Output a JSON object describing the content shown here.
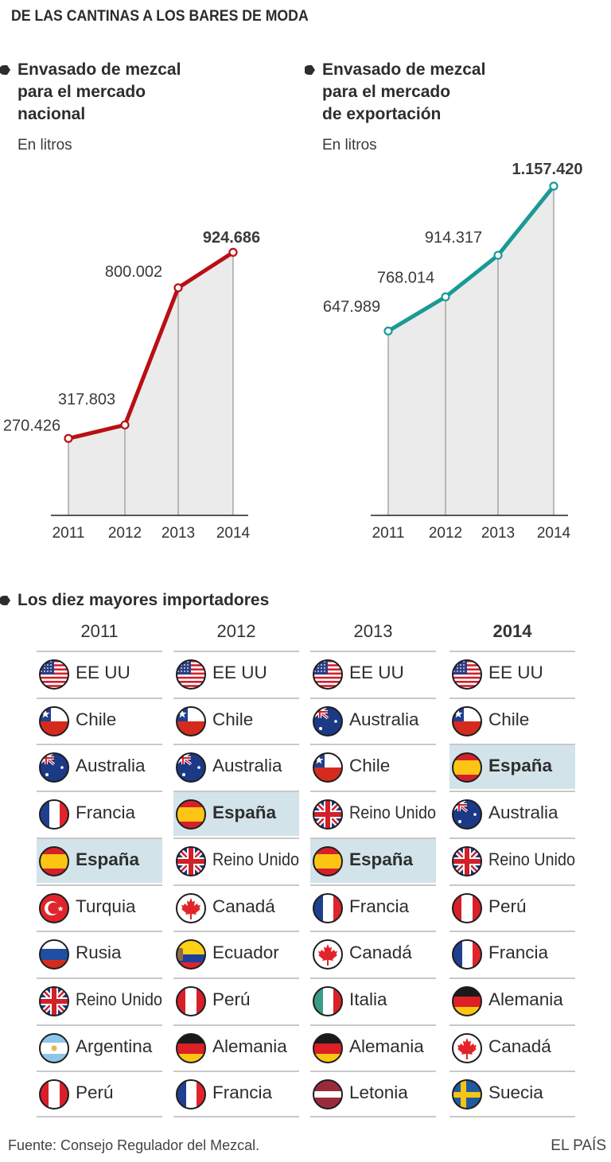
{
  "title": "DE LAS CANTINAS A LOS BARES DE MODA",
  "colors": {
    "national": "#b90f14",
    "export": "#1a9a94",
    "area_fill": "#ebebeb",
    "highlight": "#d3e3ea"
  },
  "chart_data": [
    {
      "type": "area",
      "title": "Envasado de mezcal para el mercado nacional",
      "title_lines": [
        "Envasado de mezcal",
        "para el mercado",
        "nacional"
      ],
      "units": "En litros",
      "categories": [
        "2011",
        "2012",
        "2013",
        "2014"
      ],
      "values": [
        270426,
        317803,
        800002,
        924686
      ],
      "labels": [
        "270.426",
        "317.803",
        "800.002",
        "924.686"
      ],
      "ylim": [
        0,
        1157420
      ],
      "grid": false,
      "color": "#b90f14"
    },
    {
      "type": "area",
      "title": "Envasado de mezcal para el mercado de exportación",
      "title_lines": [
        "Envasado de mezcal",
        "para el mercado",
        "de exportación"
      ],
      "units": "En litros",
      "categories": [
        "2011",
        "2012",
        "2013",
        "2014"
      ],
      "values": [
        647989,
        768014,
        914317,
        1157420
      ],
      "labels": [
        "647.989",
        "768.014",
        "914.317",
        "1.157.420"
      ],
      "ylim": [
        0,
        1157420
      ],
      "grid": false,
      "color": "#1a9a94"
    },
    {
      "type": "table",
      "title": "Los diez mayores importadores",
      "columns": [
        {
          "year": "2011",
          "countries": [
            {
              "name": "EE UU",
              "flag": "usa-flag-icon"
            },
            {
              "name": "Chile",
              "flag": "chile-flag-icon"
            },
            {
              "name": "Australia",
              "flag": "australia-flag-icon"
            },
            {
              "name": "Francia",
              "flag": "france-flag-icon"
            },
            {
              "name": "España",
              "flag": "spain-flag-icon",
              "highlight": true
            },
            {
              "name": "Turquia",
              "flag": "turkey-flag-icon"
            },
            {
              "name": "Rusia",
              "flag": "russia-flag-icon"
            },
            {
              "name": "Reino Unido",
              "flag": "uk-flag-icon"
            },
            {
              "name": "Argentina",
              "flag": "argentina-flag-icon"
            },
            {
              "name": "Perú",
              "flag": "peru-flag-icon"
            }
          ]
        },
        {
          "year": "2012",
          "countries": [
            {
              "name": "EE UU",
              "flag": "usa-flag-icon"
            },
            {
              "name": "Chile",
              "flag": "chile-flag-icon"
            },
            {
              "name": "Australia",
              "flag": "australia-flag-icon"
            },
            {
              "name": "España",
              "flag": "spain-flag-icon",
              "highlight": true
            },
            {
              "name": "Reino Unido",
              "flag": "uk-flag-icon"
            },
            {
              "name": "Canadá",
              "flag": "canada-flag-icon"
            },
            {
              "name": "Ecuador",
              "flag": "ecuador-flag-icon"
            },
            {
              "name": "Perú",
              "flag": "peru-flag-icon"
            },
            {
              "name": "Alemania",
              "flag": "germany-flag-icon"
            },
            {
              "name": "Francia",
              "flag": "france-flag-icon"
            }
          ]
        },
        {
          "year": "2013",
          "countries": [
            {
              "name": "EE UU",
              "flag": "usa-flag-icon"
            },
            {
              "name": "Australia",
              "flag": "australia-flag-icon"
            },
            {
              "name": "Chile",
              "flag": "chile-flag-icon"
            },
            {
              "name": "Reino Unido",
              "flag": "uk-flag-icon"
            },
            {
              "name": "España",
              "flag": "spain-flag-icon",
              "highlight": true
            },
            {
              "name": "Francia",
              "flag": "france-flag-icon"
            },
            {
              "name": "Canadá",
              "flag": "canada-flag-icon"
            },
            {
              "name": "Italia",
              "flag": "italy-flag-icon"
            },
            {
              "name": "Alemania",
              "flag": "germany-flag-icon"
            },
            {
              "name": "Letonia",
              "flag": "latvia-flag-icon"
            }
          ]
        },
        {
          "year": "2014",
          "bold": true,
          "countries": [
            {
              "name": "EE UU",
              "flag": "usa-flag-icon"
            },
            {
              "name": "Chile",
              "flag": "chile-flag-icon"
            },
            {
              "name": "España",
              "flag": "spain-flag-icon",
              "highlight": true
            },
            {
              "name": "Australia",
              "flag": "australia-flag-icon"
            },
            {
              "name": "Reino Unido",
              "flag": "uk-flag-icon"
            },
            {
              "name": "Perú",
              "flag": "peru-flag-icon"
            },
            {
              "name": "Francia",
              "flag": "france-flag-icon"
            },
            {
              "name": "Alemania",
              "flag": "germany-flag-icon"
            },
            {
              "name": "Canadá",
              "flag": "canada-flag-icon"
            },
            {
              "name": "Suecia",
              "flag": "sweden-flag-icon"
            }
          ]
        }
      ]
    }
  ],
  "footer": {
    "source": "Fuente: Consejo Regulador del Mezcal.",
    "brand": "EL PAÍS"
  }
}
